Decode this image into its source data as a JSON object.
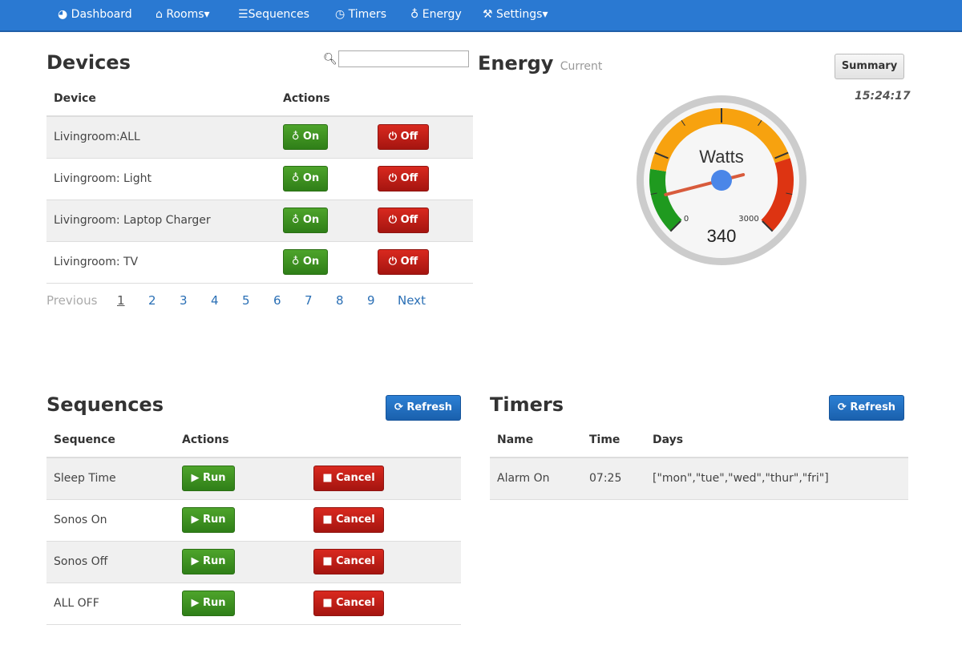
{
  "nav": {
    "items": [
      {
        "icon": "dashboard-icon",
        "label": "Dashboard"
      },
      {
        "icon": "home-icon",
        "label": "Rooms▾"
      },
      {
        "icon": "list-icon",
        "label": "Sequences"
      },
      {
        "icon": "clock-icon",
        "label": "Timers"
      },
      {
        "icon": "bulb-icon",
        "label": "Energy"
      },
      {
        "icon": "wrench-icon",
        "label": "Settings▾"
      }
    ]
  },
  "devices": {
    "title": "Devices",
    "search_value": "",
    "headers": [
      "Device",
      "Actions"
    ],
    "on_label": "On",
    "off_label": "Off",
    "rows": [
      "Livingroom:ALL",
      "Livingroom: Light",
      "Livingroom: Laptop Charger",
      "Livingroom: TV"
    ],
    "pager": {
      "previous": "Previous",
      "pages": [
        "1",
        "2",
        "3",
        "4",
        "5",
        "6",
        "7",
        "8",
        "9"
      ],
      "next": "Next",
      "current": "1"
    }
  },
  "energy": {
    "title": "Energy",
    "subtitle": "Current",
    "summary_label": "Summary",
    "time": "15:24:17",
    "gauge": {
      "label": "Watts",
      "value": 340,
      "min": 0,
      "max": 3000,
      "min_label": "0",
      "max_label": "3000",
      "value_label": "340",
      "colors": {
        "green": "#1f9a1f",
        "orange": "#f7a20f",
        "red": "#dd3412",
        "needle": "#d85b3c",
        "hub": "#4a86e8"
      }
    }
  },
  "sequences": {
    "title": "Sequences",
    "refresh_label": "Refresh",
    "headers": [
      "Sequence",
      "Actions"
    ],
    "run_label": "Run",
    "cancel_label": "Cancel",
    "rows": [
      "Sleep Time",
      "Sonos On",
      "Sonos Off",
      "ALL OFF"
    ]
  },
  "timers": {
    "title": "Timers",
    "refresh_label": "Refresh",
    "headers": [
      "Name",
      "Time",
      "Days"
    ],
    "rows": [
      {
        "name": "Alarm On",
        "time": "07:25",
        "days": "[\"mon\",\"tue\",\"wed\",\"thur\",\"fri\"]"
      }
    ]
  }
}
